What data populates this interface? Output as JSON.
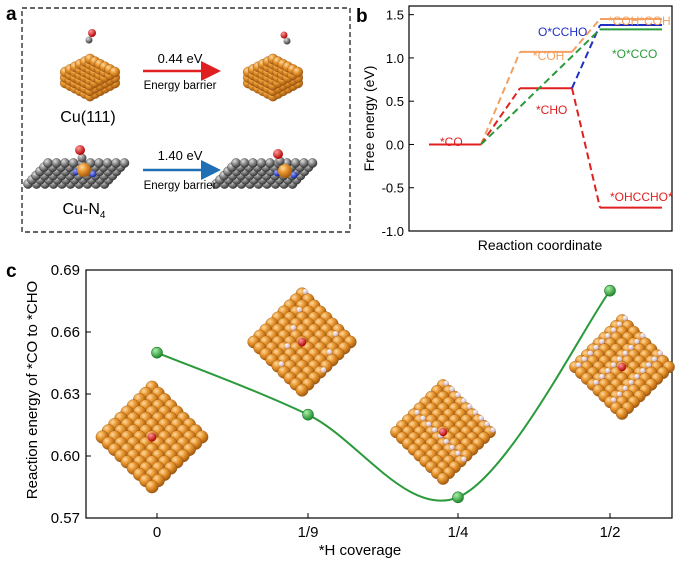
{
  "panels": {
    "a": {
      "letter": "a",
      "row1": {
        "surface": "Cu(111)",
        "barrier_value": "0.44 eV",
        "barrier_label": "Energy barrier",
        "arrow_color": "#e02020"
      },
      "row2": {
        "surface_main": "Cu-N",
        "surface_sub": "4",
        "barrier_value": "1.40 eV",
        "barrier_label": "Energy barrier",
        "arrow_color": "#1f6fb5"
      }
    },
    "b": {
      "letter": "b"
    },
    "c": {
      "letter": "c"
    }
  },
  "chart_data": [
    {
      "type": "line",
      "panel": "b",
      "title": "",
      "xlabel": "Reaction coordinate",
      "ylabel": "Free energy (eV)",
      "ylim": [
        -1.0,
        1.6
      ],
      "yticks": [
        -1.0,
        -0.5,
        0.0,
        0.5,
        1.0,
        1.5
      ],
      "ytick_labels": [
        "-1.0",
        "-0.5",
        "0.0",
        "0.5",
        "1.0",
        "1.5"
      ],
      "series": [
        {
          "name": "*CO",
          "color": "#e02020",
          "levels": [
            [
              0,
              0.0
            ]
          ]
        },
        {
          "name": "*COH",
          "color": "#f4a060",
          "levels": [
            [
              0,
              0.0
            ],
            [
              1,
              1.07
            ],
            [
              2,
              1.45
            ]
          ],
          "label_last": "*COH*COH"
        },
        {
          "name": "*CHO",
          "color": "#e02020",
          "levels": [
            [
              0,
              0.0
            ],
            [
              1,
              0.65
            ],
            [
              2,
              -0.73
            ]
          ],
          "label_last": "*OHCCHO*"
        },
        {
          "name": "O*CCHO",
          "color": "#2030c0",
          "levels": [
            [
              1,
              0.65
            ],
            [
              2,
              1.38
            ]
          ]
        },
        {
          "name": "*O*CCO",
          "color": "#2a9a3a",
          "levels": [
            [
              0,
              0.0
            ],
            [
              2,
              1.33
            ]
          ]
        }
      ],
      "labels": [
        "*CO",
        "*COH",
        "*CHO",
        "O*CCHO",
        "*COH*COH",
        "*O*CCO",
        "*OHCCHO*"
      ]
    },
    {
      "type": "line",
      "panel": "c",
      "title": "",
      "xlabel": "*H coverage",
      "ylabel": "Reaction energy of *CO to *CHO",
      "categories": [
        "0",
        "1/9",
        "1/4",
        "1/2"
      ],
      "values": [
        0.65,
        0.62,
        0.58,
        0.68
      ],
      "ylim": [
        0.57,
        0.69
      ],
      "yticks": [
        0.57,
        0.6,
        0.63,
        0.66,
        0.69
      ],
      "ytick_labels": [
        "0.57",
        "0.60",
        "0.63",
        "0.66",
        "0.69"
      ],
      "line_color": "#2a9a3a",
      "marker_color": "#3cb44b"
    }
  ]
}
